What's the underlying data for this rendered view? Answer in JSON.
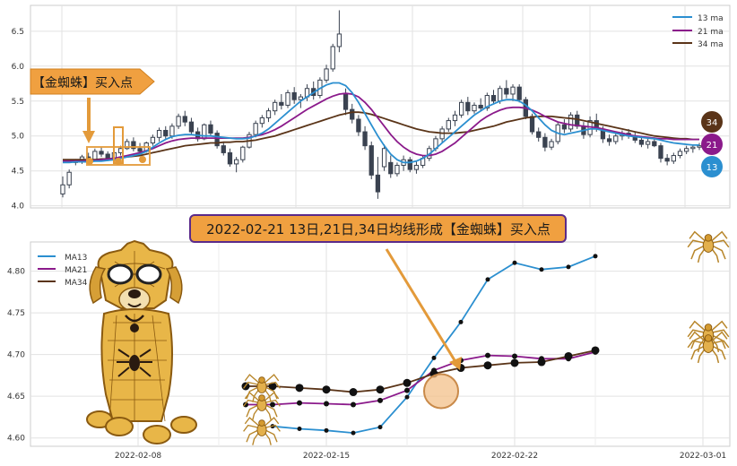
{
  "colors": {
    "ma13": "#2b8fd0",
    "ma21": "#8b1a8b",
    "ma34": "#5a3418",
    "candle": "#3a4250",
    "callout": "#f0a040",
    "callout_border": "#5a2a8a"
  },
  "top_annotation": {
    "label": "【金蜘蛛】买入点"
  },
  "middle_annotation": {
    "label": "2022-02-21 13日,21日,34日均线形成【金蜘蛛】买入点"
  },
  "badges": {
    "ma34": "34",
    "ma21": "21",
    "ma13": "13"
  },
  "decorations": {
    "dog_icon": "spider-dog-mascot",
    "spider_icon": "golden-spider"
  },
  "chart_data": [
    {
      "type": "candlestick",
      "title": "",
      "ylim": [
        3.97,
        6.87
      ],
      "yticks": [
        "4.0",
        "4.5",
        "5.0",
        "5.5",
        "6.0",
        "6.5"
      ],
      "grid": true,
      "legend_position": "top-right",
      "legend": [
        "13 ma",
        "21 ma",
        "34 ma"
      ],
      "ohlc": [
        [
          4.17,
          4.42,
          4.12,
          4.3
        ],
        [
          4.3,
          4.52,
          4.25,
          4.48
        ],
        [
          4.62,
          4.67,
          4.58,
          4.64
        ],
        [
          4.64,
          4.73,
          4.6,
          4.7
        ],
        [
          4.7,
          4.76,
          4.62,
          4.66
        ],
        [
          4.66,
          4.82,
          4.64,
          4.78
        ],
        [
          4.78,
          4.84,
          4.7,
          4.74
        ],
        [
          4.74,
          4.78,
          4.64,
          4.68
        ],
        [
          4.68,
          4.8,
          4.66,
          4.76
        ],
        [
          4.76,
          4.86,
          4.72,
          4.82
        ],
        [
          4.82,
          4.96,
          4.8,
          4.92
        ],
        [
          4.92,
          4.98,
          4.78,
          4.82
        ],
        [
          4.82,
          4.9,
          4.74,
          4.78
        ],
        [
          4.78,
          4.92,
          4.76,
          4.9
        ],
        [
          4.9,
          5.02,
          4.86,
          4.98
        ],
        [
          4.98,
          5.12,
          4.92,
          5.08
        ],
        [
          5.08,
          5.14,
          4.96,
          5.0
        ],
        [
          5.0,
          5.18,
          4.96,
          5.14
        ],
        [
          5.14,
          5.32,
          5.1,
          5.28
        ],
        [
          5.28,
          5.36,
          5.14,
          5.2
        ],
        [
          5.2,
          5.26,
          5.02,
          5.06
        ],
        [
          5.06,
          5.12,
          4.92,
          4.96
        ],
        [
          4.96,
          5.18,
          4.94,
          5.16
        ],
        [
          5.16,
          5.22,
          5.0,
          5.04
        ],
        [
          5.04,
          5.08,
          4.82,
          4.86
        ],
        [
          4.86,
          4.92,
          4.72,
          4.76
        ],
        [
          4.76,
          4.82,
          4.56,
          4.6
        ],
        [
          4.6,
          4.7,
          4.48,
          4.66
        ],
        [
          4.66,
          4.86,
          4.62,
          4.84
        ],
        [
          4.84,
          5.06,
          4.82,
          5.02
        ],
        [
          5.02,
          5.22,
          4.98,
          5.18
        ],
        [
          5.18,
          5.3,
          5.12,
          5.26
        ],
        [
          5.26,
          5.4,
          5.2,
          5.36
        ],
        [
          5.36,
          5.52,
          5.3,
          5.48
        ],
        [
          5.48,
          5.6,
          5.38,
          5.44
        ],
        [
          5.44,
          5.66,
          5.4,
          5.62
        ],
        [
          5.62,
          5.7,
          5.46,
          5.52
        ],
        [
          5.52,
          5.6,
          5.4,
          5.56
        ],
        [
          5.56,
          5.74,
          5.5,
          5.68
        ],
        [
          5.68,
          5.78,
          5.52,
          5.58
        ],
        [
          5.58,
          5.84,
          5.54,
          5.8
        ],
        [
          5.8,
          6.02,
          5.76,
          5.96
        ],
        [
          5.96,
          6.32,
          5.92,
          6.28
        ],
        [
          6.28,
          6.8,
          6.2,
          6.46
        ],
        [
          5.6,
          5.68,
          5.3,
          5.38
        ],
        [
          5.38,
          5.46,
          5.18,
          5.24
        ],
        [
          5.24,
          5.3,
          5.0,
          5.06
        ],
        [
          5.06,
          5.14,
          4.8,
          4.86
        ],
        [
          4.86,
          4.92,
          4.38,
          4.44
        ],
        [
          4.44,
          4.7,
          4.1,
          4.2
        ],
        [
          4.56,
          4.88,
          4.5,
          4.82
        ],
        [
          4.62,
          4.72,
          4.4,
          4.46
        ],
        [
          4.46,
          4.62,
          4.42,
          4.58
        ],
        [
          4.58,
          4.72,
          4.5,
          4.66
        ],
        [
          4.66,
          4.7,
          4.48,
          4.52
        ],
        [
          4.52,
          4.64,
          4.46,
          4.58
        ],
        [
          4.58,
          4.72,
          4.54,
          4.68
        ],
        [
          4.68,
          4.86,
          4.64,
          4.82
        ],
        [
          4.82,
          5.0,
          4.78,
          4.96
        ],
        [
          4.96,
          5.14,
          4.9,
          5.1
        ],
        [
          5.1,
          5.26,
          5.06,
          5.22
        ],
        [
          5.22,
          5.36,
          5.14,
          5.3
        ],
        [
          5.3,
          5.52,
          5.26,
          5.48
        ],
        [
          5.48,
          5.56,
          5.3,
          5.36
        ],
        [
          5.36,
          5.48,
          5.32,
          5.44
        ],
        [
          5.44,
          5.54,
          5.36,
          5.4
        ],
        [
          5.4,
          5.62,
          5.36,
          5.58
        ],
        [
          5.58,
          5.66,
          5.46,
          5.5
        ],
        [
          5.5,
          5.72,
          5.46,
          5.68
        ],
        [
          5.68,
          5.8,
          5.54,
          5.6
        ],
        [
          5.6,
          5.74,
          5.5,
          5.7
        ],
        [
          5.7,
          5.74,
          5.48,
          5.52
        ],
        [
          5.52,
          5.56,
          5.24,
          5.28
        ],
        [
          5.28,
          5.32,
          5.02,
          5.06
        ],
        [
          5.06,
          5.12,
          4.92,
          4.98
        ],
        [
          4.98,
          5.04,
          4.78,
          4.84
        ],
        [
          4.84,
          4.96,
          4.8,
          4.92
        ],
        [
          4.92,
          5.2,
          4.88,
          5.16
        ],
        [
          5.16,
          5.24,
          5.04,
          5.1
        ],
        [
          5.1,
          5.34,
          5.06,
          5.3
        ],
        [
          5.3,
          5.36,
          5.1,
          5.14
        ],
        [
          5.14,
          5.2,
          4.96,
          5.02
        ],
        [
          5.02,
          5.28,
          4.98,
          5.22
        ],
        [
          5.22,
          5.32,
          5.06,
          5.1
        ],
        [
          5.1,
          5.14,
          4.9,
          4.96
        ],
        [
          4.96,
          5.02,
          4.86,
          4.92
        ],
        [
          4.92,
          5.04,
          4.88,
          5.0
        ],
        [
          5.0,
          5.08,
          4.94,
          5.04
        ],
        [
          5.04,
          5.1,
          4.96,
          5.0
        ],
        [
          5.0,
          5.06,
          4.9,
          4.94
        ],
        [
          4.94,
          5.0,
          4.84,
          4.88
        ],
        [
          4.88,
          4.96,
          4.82,
          4.92
        ],
        [
          4.92,
          4.98,
          4.84,
          4.86
        ],
        [
          4.86,
          4.9,
          4.62,
          4.68
        ],
        [
          4.68,
          4.74,
          4.58,
          4.64
        ],
        [
          4.64,
          4.76,
          4.6,
          4.72
        ],
        [
          4.72,
          4.82,
          4.68,
          4.78
        ],
        [
          4.78,
          4.86,
          4.74,
          4.82
        ],
        [
          4.82,
          4.88,
          4.76,
          4.84
        ],
        [
          4.84,
          4.9,
          4.8,
          4.86
        ]
      ],
      "ma13": [
        4.62,
        4.62,
        4.63,
        4.63,
        4.63,
        4.64,
        4.64,
        4.65,
        4.66,
        4.68,
        4.7,
        4.72,
        4.74,
        4.78,
        4.84,
        4.9,
        4.95,
        4.99,
        5.01,
        5.02,
        5.02,
        5.01,
        5.0,
        5.0,
        4.99,
        4.98,
        4.97,
        4.96,
        4.96,
        4.97,
        5.0,
        5.04,
        5.1,
        5.18,
        5.26,
        5.34,
        5.42,
        5.5,
        5.56,
        5.62,
        5.68,
        5.73,
        5.76,
        5.76,
        5.72,
        5.62,
        5.48,
        5.32,
        5.16,
        5.0,
        4.86,
        4.74,
        4.66,
        4.62,
        4.62,
        4.64,
        4.68,
        4.74,
        4.82,
        4.9,
        4.98,
        5.06,
        5.14,
        5.22,
        5.3,
        5.36,
        5.42,
        5.46,
        5.5,
        5.52,
        5.52,
        5.5,
        5.44,
        5.36,
        5.26,
        5.16,
        5.08,
        5.04,
        5.02,
        5.04,
        5.06,
        5.08,
        5.1,
        5.1,
        5.08,
        5.06,
        5.04,
        5.02,
        5.0,
        4.99,
        4.98,
        4.97,
        4.96,
        4.94,
        4.92,
        4.9,
        4.89,
        4.88,
        4.87,
        4.87
      ],
      "ma21": [
        4.64,
        4.64,
        4.64,
        4.64,
        4.65,
        4.65,
        4.66,
        4.67,
        4.68,
        4.7,
        4.72,
        4.74,
        4.76,
        4.79,
        4.82,
        4.86,
        4.9,
        4.93,
        4.95,
        4.96,
        4.97,
        4.97,
        4.97,
        4.97,
        4.97,
        4.97,
        4.97,
        4.97,
        4.97,
        4.98,
        5.0,
        5.02,
        5.05,
        5.09,
        5.14,
        5.2,
        5.26,
        5.32,
        5.38,
        5.43,
        5.48,
        5.53,
        5.57,
        5.6,
        5.61,
        5.6,
        5.56,
        5.48,
        5.38,
        5.26,
        5.14,
        5.02,
        4.92,
        4.84,
        4.78,
        4.74,
        4.72,
        4.72,
        4.74,
        4.78,
        4.84,
        4.9,
        4.98,
        5.06,
        5.14,
        5.22,
        5.28,
        5.33,
        5.37,
        5.4,
        5.41,
        5.41,
        5.4,
        5.37,
        5.33,
        5.28,
        5.24,
        5.2,
        5.18,
        5.16,
        5.15,
        5.14,
        5.13,
        5.12,
        5.1,
        5.08,
        5.06,
        5.04,
        5.02,
        5.0,
        4.99,
        4.98,
        4.97,
        4.96,
        4.96,
        4.95,
        4.95,
        4.95,
        4.95,
        4.95
      ],
      "ma34": [
        4.66,
        4.66,
        4.66,
        4.66,
        4.66,
        4.66,
        4.67,
        4.67,
        4.68,
        4.69,
        4.7,
        4.71,
        4.72,
        4.74,
        4.76,
        4.78,
        4.8,
        4.82,
        4.84,
        4.86,
        4.87,
        4.88,
        4.89,
        4.9,
        4.9,
        4.91,
        4.91,
        4.92,
        4.92,
        4.93,
        4.94,
        4.96,
        4.98,
        5.0,
        5.03,
        5.06,
        5.09,
        5.12,
        5.15,
        5.18,
        5.21,
        5.24,
        5.27,
        5.3,
        5.32,
        5.34,
        5.34,
        5.33,
        5.31,
        5.28,
        5.25,
        5.22,
        5.19,
        5.16,
        5.13,
        5.1,
        5.08,
        5.06,
        5.05,
        5.04,
        5.04,
        5.04,
        5.05,
        5.06,
        5.08,
        5.1,
        5.12,
        5.14,
        5.17,
        5.2,
        5.22,
        5.24,
        5.26,
        5.27,
        5.28,
        5.28,
        5.28,
        5.27,
        5.26,
        5.25,
        5.24,
        5.22,
        5.2,
        5.18,
        5.16,
        5.14,
        5.12,
        5.1,
        5.08,
        5.06,
        5.04,
        5.02,
        5.0,
        4.99,
        4.98,
        4.97,
        4.96,
        4.96,
        4.95,
        4.95
      ]
    },
    {
      "type": "line",
      "title": "",
      "x_dates": [
        "2022-02-12",
        "2022-02-13",
        "2022-02-14",
        "2022-02-15",
        "2022-02-16",
        "2022-02-17",
        "2022-02-18",
        "2022-02-19",
        "2022-02-20",
        "2022-02-21",
        "2022-02-22",
        "2022-02-23",
        "2022-02-24",
        "2022-02-25",
        "2022-02-26",
        "2022-02-27",
        "2022-02-28",
        "2022-03-01",
        "2022-03-02"
      ],
      "xticks": [
        "2022-02-08",
        "2022-02-15",
        "2022-02-22",
        "2022-03-01"
      ],
      "xtick_dates": [
        "2022-02-08",
        "2022-02-15",
        "2022-02-22",
        "2022-03-01"
      ],
      "x_range": [
        "2022-02-04",
        "2022-03-02"
      ],
      "ylim": [
        4.59,
        4.835
      ],
      "yticks": [
        "4.60",
        "4.65",
        "4.70",
        "4.75",
        "4.80"
      ],
      "grid": true,
      "legend_position": "top-left",
      "series": [
        {
          "name": "MA13",
          "values": [
            null,
            4.614,
            4.611,
            4.609,
            4.606,
            4.613,
            4.649,
            4.696,
            4.739,
            4.79,
            4.81,
            4.802,
            4.805,
            4.818,
            null,
            null,
            null,
            null,
            null
          ]
        },
        {
          "name": "MA21",
          "values": [
            4.64,
            4.64,
            4.642,
            4.641,
            4.64,
            4.645,
            4.657,
            4.681,
            4.693,
            4.699,
            4.698,
            4.695,
            4.695,
            4.703,
            null,
            null,
            null,
            null,
            null
          ]
        },
        {
          "name": "MA34",
          "values": [
            4.662,
            4.662,
            4.66,
            4.658,
            4.655,
            4.658,
            4.666,
            4.677,
            4.684,
            4.687,
            4.69,
            4.691,
            4.698,
            4.705,
            null,
            null,
            null,
            null,
            null
          ]
        }
      ],
      "x_dates_used": [
        "2022-02-12",
        "2022-02-13",
        "2022-02-14",
        "2022-02-15",
        "2022-02-16",
        "2022-02-17",
        "2022-02-18",
        "2022-02-19",
        "2022-02-20",
        "2022-02-21",
        "2022-02-22",
        "2022-02-23",
        "2022-02-24",
        "2022-02-25"
      ],
      "annotation": {
        "date": "2022-02-19",
        "value": 4.654
      }
    }
  ]
}
